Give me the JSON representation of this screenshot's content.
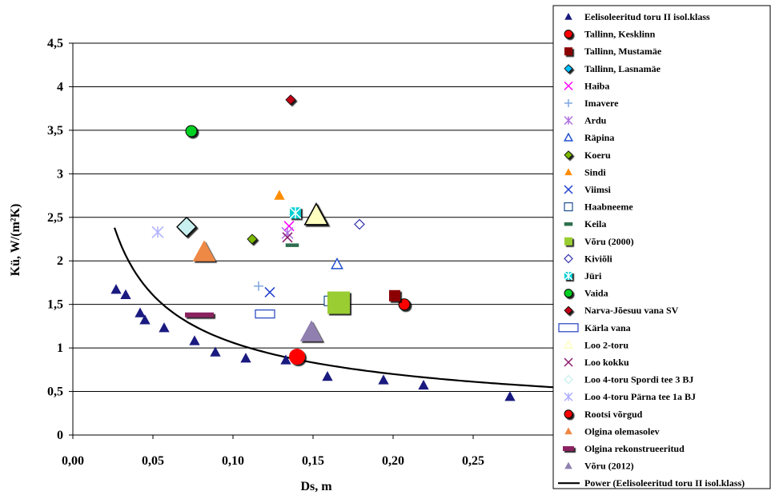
{
  "chart_data": {
    "type": "scatter",
    "xlabel": "Ds, m",
    "ylabel": "Kü, W/(m²K)",
    "xlim": [
      0,
      0.3
    ],
    "ylim": [
      0,
      4.5
    ],
    "x_ticks": [
      "0,00",
      "0,05",
      "0,10",
      "0,15",
      "0,20",
      "0,25"
    ],
    "y_ticks": [
      "0",
      "0,5",
      "1",
      "1,5",
      "2",
      "2,5",
      "3",
      "3,5",
      "4",
      "4,5"
    ],
    "grid": "horizontal",
    "legend_position": "right",
    "series": [
      {
        "name": "Eelisoleeritud toru II isol.klass",
        "marker": "triangle-filled",
        "color": "#1a1a80",
        "points": [
          [
            0.027,
            1.67
          ],
          [
            0.033,
            1.61
          ],
          [
            0.042,
            1.4
          ],
          [
            0.045,
            1.32
          ],
          [
            0.057,
            1.23
          ],
          [
            0.076,
            1.08
          ],
          [
            0.089,
            0.95
          ],
          [
            0.108,
            0.88
          ],
          [
            0.133,
            0.86
          ],
          [
            0.159,
            0.67
          ],
          [
            0.194,
            0.63
          ],
          [
            0.219,
            0.57
          ],
          [
            0.273,
            0.44
          ]
        ]
      },
      {
        "name": "Tallinn, Kesklinn",
        "marker": "circle-filled",
        "color": "#ff0000",
        "points": [
          [
            0.207,
            1.5
          ]
        ]
      },
      {
        "name": "Tallinn, Mustamäe",
        "marker": "square-filled",
        "color": "#8b0000",
        "points": [
          [
            0.201,
            1.6
          ]
        ]
      },
      {
        "name": "Tallinn, Lasnamäe",
        "marker": "diamond-filled",
        "color": "#00bfff",
        "points": []
      },
      {
        "name": "Haiba",
        "marker": "x",
        "color": "#ff00ff",
        "points": [
          [
            0.135,
            2.4
          ]
        ]
      },
      {
        "name": "Imavere",
        "marker": "plus",
        "color": "#7fa7e0",
        "points": [
          [
            0.116,
            1.71
          ]
        ]
      },
      {
        "name": "Ardu",
        "marker": "asterisk",
        "color": "#b070e0",
        "points": [
          [
            0.134,
            2.32
          ]
        ]
      },
      {
        "name": "Räpina",
        "marker": "triangle-open",
        "color": "#1f4fd0",
        "points": [
          [
            0.165,
            1.96
          ]
        ]
      },
      {
        "name": "Koeru",
        "marker": "diamond-filled",
        "color": "#7cb800",
        "points": [
          [
            0.112,
            2.25
          ]
        ]
      },
      {
        "name": "Sindi",
        "marker": "triangle-filled",
        "color": "#ff8c00",
        "points": [
          [
            0.129,
            2.75
          ]
        ]
      },
      {
        "name": "Viimsi",
        "marker": "x",
        "color": "#1f3fd0",
        "points": [
          [
            0.123,
            1.64
          ]
        ]
      },
      {
        "name": "Haabneeme",
        "marker": "square-open",
        "color": "#1f4f8f",
        "points": [
          [
            0.16,
            1.54
          ]
        ]
      },
      {
        "name": "Keila",
        "marker": "dash",
        "color": "#2f6f4f",
        "points": [
          [
            0.137,
            2.18
          ]
        ]
      },
      {
        "name": "Võru (2000)",
        "marker": "square-filled-large",
        "color": "#9acd32",
        "points": [
          [
            0.166,
            1.52
          ]
        ]
      },
      {
        "name": "Kiviõli",
        "marker": "diamond-open",
        "color": "#3f3faf",
        "points": [
          [
            0.179,
            2.42
          ]
        ]
      },
      {
        "name": "Jüri",
        "marker": "square-x",
        "color": "#00ced1",
        "points": [
          [
            0.139,
            2.55
          ]
        ]
      },
      {
        "name": "Vaida",
        "marker": "circle-filled",
        "color": "#00d020",
        "points": [
          [
            0.074,
            3.49
          ]
        ]
      },
      {
        "name": "Narva-Jõesuu vana SV",
        "marker": "diamond-filled",
        "color": "#c00018",
        "points": [
          [
            0.136,
            3.85
          ]
        ]
      },
      {
        "name": "Kärla vana",
        "marker": "rect-open",
        "color": "#2040c0",
        "points": [
          [
            0.12,
            1.39
          ]
        ]
      },
      {
        "name": "Loo 2-toru",
        "marker": "triangle-open-large",
        "color": "#ffffc0",
        "points": [
          [
            0.152,
            2.52
          ]
        ]
      },
      {
        "name": "Loo kokku",
        "marker": "x",
        "color": "#8b1a6b",
        "points": [
          [
            0.134,
            2.27
          ]
        ]
      },
      {
        "name": "Loo 4-toru  Spordi tee 3 BJ",
        "marker": "diamond-open-large",
        "color": "#c8f0f0",
        "points": [
          [
            0.071,
            2.39
          ]
        ]
      },
      {
        "name": "Loo 4-toru  Pärna tee 1a BJ",
        "marker": "asterisk",
        "color": "#b0b0ff",
        "points": [
          [
            0.053,
            2.33
          ]
        ]
      },
      {
        "name": "Rootsi võrgud",
        "marker": "circle-filled-large",
        "color": "#ff0000",
        "points": [
          [
            0.14,
            0.9
          ]
        ]
      },
      {
        "name": "Olgina olemasolev",
        "marker": "triangle-filled-large",
        "color": "#ee8844",
        "points": [
          [
            0.082,
            2.1
          ]
        ]
      },
      {
        "name": "Olgina rekonstrueeritud",
        "marker": "bar",
        "color": "#8b2060",
        "points": [
          [
            0.079,
            1.38
          ]
        ]
      },
      {
        "name": "Võru (2012)",
        "marker": "triangle-filled-large",
        "color": "#9080b0",
        "points": [
          [
            0.149,
            1.18
          ]
        ]
      }
    ],
    "trendline": {
      "name": "Power (Eelisoleeritud toru II isol.klass)",
      "type": "power",
      "a": 0.2665,
      "b": -0.6,
      "x_range": [
        0.026,
        0.3
      ]
    }
  }
}
